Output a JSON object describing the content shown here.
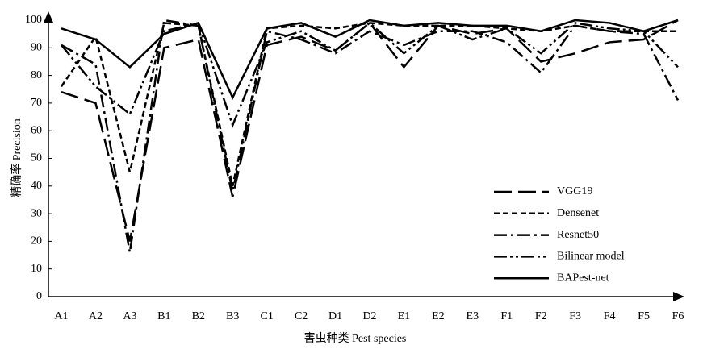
{
  "chart_data": {
    "type": "line",
    "xlabel": "害虫种类 Pest species",
    "ylabel": "精确率 Precision",
    "categories": [
      "A1",
      "A2",
      "A3",
      "B1",
      "B2",
      "B3",
      "C1",
      "C2",
      "D1",
      "D2",
      "E1",
      "E2",
      "E3",
      "F1",
      "F2",
      "F3",
      "F4",
      "F5",
      "F6"
    ],
    "ylim": [
      0,
      100
    ],
    "yticks": [
      0,
      10,
      20,
      30,
      40,
      50,
      60,
      70,
      80,
      90,
      100
    ],
    "grid": false,
    "legend": "lower right",
    "series": [
      {
        "name": "VGG19",
        "color": "#000000",
        "dash": "22,8",
        "values": [
          74,
          70,
          20,
          90,
          93,
          36,
          91,
          94,
          89,
          99,
          83,
          98,
          95,
          97,
          85,
          88,
          92,
          93,
          100
        ]
      },
      {
        "name": "Densenet",
        "color": "#000000",
        "dash": "7,4",
        "values": [
          76,
          94,
          45,
          99,
          98,
          40,
          97,
          98,
          97,
          99,
          98,
          98,
          98,
          97,
          96,
          98,
          96,
          96,
          96
        ]
      },
      {
        "name": "Resnet50",
        "color": "#000000",
        "dash": "16,5,3,5",
        "values": [
          91,
          84,
          16,
          100,
          98,
          38,
          96,
          93,
          88,
          96,
          91,
          96,
          96,
          92,
          81,
          98,
          96,
          95,
          71
        ]
      },
      {
        "name": "Bilinear model",
        "color": "#000000",
        "dash": "16,4,3,4,3,4",
        "values": [
          91,
          76,
          66,
          96,
          99,
          62,
          92,
          96,
          89,
          99,
          88,
          98,
          93,
          97,
          88,
          99,
          97,
          96,
          83
        ]
      },
      {
        "name": "BAPest-net",
        "color": "#000000",
        "dash": "",
        "values": [
          97,
          93,
          83,
          95,
          99,
          72,
          97,
          99,
          94,
          100,
          98,
          99,
          98,
          98,
          96,
          100,
          99,
          96,
          100
        ]
      }
    ]
  }
}
